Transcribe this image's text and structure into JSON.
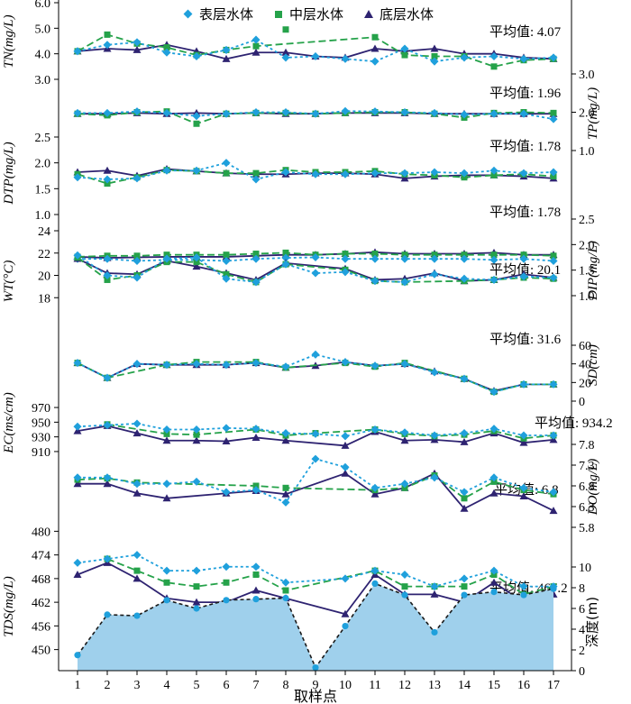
{
  "legend": {
    "surface": "表层水体",
    "middle": "中层水体",
    "bottom": "底层水体"
  },
  "colors": {
    "surface": "#1fa0dc",
    "middle": "#25a24a",
    "bottom": "#2e2371",
    "depth_fill": "#9fd0ec",
    "depth_line": "#1a1a1a"
  },
  "xlabel": "取样点",
  "chart_data": [
    {
      "type": "line",
      "label": "TN",
      "unit": "(mg/L)",
      "side": "left",
      "ylim": [
        3.0,
        6.0
      ],
      "ticks": [
        "3.0",
        "4.0",
        "5.0",
        "6.0"
      ],
      "mean_label": "平均值: 4.07",
      "x": [
        1,
        2,
        3,
        4,
        5,
        6,
        7,
        8,
        9,
        10,
        11,
        12,
        13,
        14,
        15,
        16,
        17
      ],
      "series": [
        {
          "name": "表层水体",
          "values": [
            4.1,
            4.35,
            4.45,
            4.05,
            3.9,
            4.15,
            4.55,
            3.85,
            3.9,
            3.8,
            3.7,
            4.2,
            3.7,
            3.85,
            3.9,
            3.8,
            3.85
          ]
        },
        {
          "name": "中层水体",
          "values": [
            4.1,
            4.75,
            4.4,
            4.25,
            3.95,
            4.15,
            4.3,
            null,
            null,
            null,
            4.65,
            3.95,
            3.9,
            3.9,
            3.5,
            3.75,
            3.8
          ]
        },
        {
          "name": "底层水体",
          "values": [
            4.1,
            4.2,
            4.15,
            4.35,
            4.1,
            3.8,
            4.05,
            4.05,
            3.9,
            3.85,
            4.2,
            4.1,
            4.2,
            4.0,
            4.0,
            3.85,
            3.8
          ]
        }
      ],
      "outliers": [
        {
          "series": "中层水体",
          "x": 8,
          "y": 4.95
        }
      ]
    },
    {
      "type": "line",
      "label": "TP",
      "unit": "(mg/L)",
      "side": "right",
      "ylim": [
        1.0,
        3.0
      ],
      "ticks": [
        "1.0",
        "2.0",
        "3.0"
      ],
      "mean_label": "平均值: 1.96",
      "x": [
        1,
        2,
        3,
        4,
        5,
        6,
        7,
        8,
        9,
        10,
        11,
        12,
        13,
        14,
        15,
        16,
        17
      ],
      "series": [
        {
          "name": "表层水体",
          "values": [
            1.98,
            1.98,
            2.02,
            1.98,
            1.9,
            1.96,
            2.0,
            2.0,
            1.96,
            2.03,
            2.02,
            2.0,
            1.98,
            1.94,
            1.96,
            1.96,
            1.82
          ]
        },
        {
          "name": "中层水体",
          "values": [
            1.96,
            1.92,
            2.0,
            2.02,
            1.7,
            1.96,
            1.98,
            1.98,
            1.96,
            1.98,
            2.0,
            2.0,
            1.96,
            1.86,
            1.98,
            2.0,
            1.98
          ]
        },
        {
          "name": "底层水体",
          "values": [
            1.96,
            1.96,
            1.98,
            1.96,
            1.98,
            1.96,
            1.98,
            1.96,
            1.96,
            1.98,
            1.98,
            1.98,
            1.96,
            1.96,
            1.96,
            1.96,
            1.96
          ]
        }
      ]
    },
    {
      "type": "line",
      "label": "DTP",
      "unit": "(mg/L)",
      "side": "left",
      "ylim": [
        1.0,
        2.5
      ],
      "ticks": [
        "1.0",
        "1.5",
        "2.0",
        "2.5"
      ],
      "mean_label": "平均值: 1.78",
      "x": [
        1,
        2,
        3,
        4,
        5,
        6,
        7,
        8,
        9,
        10,
        11,
        12,
        13,
        14,
        15,
        16,
        17
      ],
      "series": [
        {
          "name": "表层水体",
          "values": [
            1.72,
            1.68,
            1.7,
            1.85,
            1.85,
            2.0,
            1.68,
            1.82,
            1.78,
            1.78,
            1.8,
            1.8,
            1.82,
            1.8,
            1.85,
            1.8,
            1.82
          ]
        },
        {
          "name": "中层水体",
          "values": [
            1.78,
            1.6,
            1.72,
            1.86,
            1.84,
            1.8,
            1.8,
            1.86,
            1.82,
            1.82,
            1.84,
            1.78,
            1.76,
            1.72,
            1.76,
            1.78,
            1.74
          ]
        },
        {
          "name": "底层水体",
          "values": [
            1.82,
            1.85,
            1.75,
            1.88,
            1.84,
            1.8,
            1.78,
            1.78,
            1.8,
            1.8,
            1.78,
            1.7,
            1.74,
            1.76,
            1.76,
            1.74,
            1.7
          ]
        }
      ]
    },
    {
      "type": "line",
      "label": "DIP",
      "unit": "(mg/L)",
      "side": "right",
      "ylim": [
        1.0,
        2.5
      ],
      "ticks": [
        "1.0",
        "1.5",
        "2.0",
        "2.5"
      ],
      "mean_label": "平均值: 1.78",
      "x": [
        1,
        2,
        3,
        4,
        5,
        6,
        7,
        8,
        9,
        10,
        11,
        12,
        13,
        14,
        15,
        16,
        17
      ],
      "series": [
        {
          "name": "表层水体",
          "values": [
            1.72,
            1.72,
            1.68,
            1.7,
            1.7,
            1.68,
            1.72,
            1.74,
            1.75,
            1.72,
            1.72,
            1.72,
            1.72,
            1.72,
            1.7,
            1.72,
            1.68
          ]
        },
        {
          "name": "中层水体",
          "values": [
            1.76,
            1.78,
            1.78,
            1.8,
            1.8,
            1.8,
            1.82,
            1.84,
            1.8,
            1.82,
            1.82,
            1.8,
            1.8,
            1.8,
            1.8,
            1.8,
            1.78
          ]
        },
        {
          "name": "底层水体",
          "values": [
            1.76,
            1.74,
            1.75,
            1.76,
            1.76,
            1.76,
            1.78,
            1.8,
            1.8,
            1.82,
            1.85,
            1.82,
            1.82,
            1.82,
            1.84,
            1.8,
            1.8
          ]
        }
      ]
    },
    {
      "type": "line",
      "label": "WT",
      "unit": "(°C)",
      "side": "left",
      "ylim": [
        16,
        24
      ],
      "ticks": [
        "18",
        "20",
        "22",
        "24"
      ],
      "mean_label": "平均值: 20.1",
      "x": [
        1,
        2,
        3,
        4,
        5,
        6,
        7,
        8,
        9,
        10,
        11,
        12,
        13,
        14,
        15,
        16,
        17
      ],
      "series": [
        {
          "name": "表层水体",
          "values": [
            21.8,
            20.0,
            19.8,
            21.5,
            21.6,
            19.7,
            19.4,
            21.0,
            20.2,
            20.3,
            19.5,
            19.4,
            20.1,
            19.7,
            19.6,
            19.9,
            19.8
          ]
        },
        {
          "name": "中层水体",
          "values": [
            21.6,
            19.6,
            20.0,
            21.2,
            21.2,
            20.1,
            19.4,
            21.0,
            null,
            20.5,
            19.5,
            19.4,
            null,
            19.5,
            19.6,
            19.8,
            19.7
          ]
        },
        {
          "name": "底层水体",
          "values": [
            21.5,
            20.2,
            20.1,
            21.3,
            20.8,
            20.2,
            19.6,
            21.1,
            null,
            20.6,
            19.6,
            19.7,
            20.2,
            19.5,
            19.6,
            20.1,
            19.8
          ]
        }
      ]
    },
    {
      "type": "line",
      "label": "SD",
      "unit": "(cm)",
      "side": "right",
      "ylim": [
        0,
        60
      ],
      "ticks": [
        "0",
        "20",
        "40",
        "60"
      ],
      "mean_label": "平均值: 31.6",
      "x": [
        1,
        2,
        3,
        4,
        5,
        6,
        7,
        8,
        9,
        10,
        11,
        12,
        13,
        14,
        15,
        16,
        17
      ],
      "series": [
        {
          "name": "表层水体",
          "values": [
            41,
            25,
            40,
            39,
            40,
            39,
            41,
            37,
            50,
            42,
            38,
            40,
            31,
            24,
            10,
            18,
            18
          ]
        },
        {
          "name": "中层水体",
          "values": [
            41,
            25,
            null,
            39,
            42,
            null,
            42,
            36,
            null,
            41,
            37,
            41,
            null,
            24,
            10,
            18,
            18
          ]
        },
        {
          "name": "底层水体",
          "values": [
            41,
            25,
            40,
            39,
            39,
            39,
            41,
            36,
            38,
            42,
            38,
            40,
            32,
            24,
            11,
            18,
            18
          ]
        }
      ]
    },
    {
      "type": "line",
      "label": "EC",
      "unit": "(ms/cm)",
      "side": "left",
      "ylim": [
        905,
        975
      ],
      "ticks": [
        "910",
        "930",
        "950",
        "970"
      ],
      "mean_label": "平均值: 934.2",
      "x": [
        1,
        2,
        3,
        4,
        5,
        6,
        7,
        8,
        9,
        10,
        11,
        12,
        13,
        14,
        15,
        16,
        17
      ],
      "series": [
        {
          "name": "表层水体",
          "values": [
            944,
            946,
            948,
            940,
            940,
            942,
            941,
            935,
            934,
            931,
            940,
            936,
            932,
            935,
            941,
            932,
            932
          ]
        },
        {
          "name": "中层水体",
          "values": [
            null,
            947,
            null,
            934,
            933,
            null,
            940,
            932,
            935,
            null,
            940,
            934,
            931,
            933,
            938,
            928,
            932
          ]
        },
        {
          "name": "底层水体",
          "values": [
            938,
            945,
            935,
            925,
            925,
            924,
            929,
            925,
            null,
            918,
            937,
            925,
            926,
            923,
            935,
            922,
            926
          ]
        }
      ]
    },
    {
      "type": "line",
      "label": "DO",
      "unit": "(mg/L)",
      "side": "right",
      "ylim": [
        5.8,
        7.8
      ],
      "ticks": [
        "5.8",
        "6.3",
        "6.8",
        "7.3",
        "7.8"
      ],
      "mean_label": "平均值: 6.8",
      "x": [
        1,
        2,
        3,
        4,
        5,
        6,
        7,
        8,
        9,
        10,
        11,
        12,
        13,
        14,
        15,
        16,
        17
      ],
      "series": [
        {
          "name": "表层水体",
          "values": [
            7.0,
            7.0,
            6.85,
            6.85,
            6.9,
            6.65,
            6.7,
            6.4,
            7.45,
            7.25,
            6.75,
            6.85,
            7.0,
            6.65,
            7.0,
            6.75,
            6.65
          ]
        },
        {
          "name": "中层水体",
          "values": [
            6.95,
            6.98,
            6.88,
            null,
            null,
            null,
            6.8,
            6.75,
            null,
            null,
            6.7,
            6.75,
            7.05,
            6.5,
            6.9,
            6.7,
            6.6
          ]
        },
        {
          "name": "底层水体",
          "values": [
            6.85,
            6.85,
            6.62,
            6.5,
            null,
            6.62,
            6.68,
            6.6,
            null,
            7.1,
            6.6,
            6.75,
            7.1,
            6.25,
            6.62,
            6.55,
            6.2
          ]
        }
      ]
    },
    {
      "type": "line",
      "label": "TDS",
      "unit": "(mg/L)",
      "side": "left",
      "ylim": [
        449,
        481
      ],
      "ticks": [
        "450",
        "456",
        "462",
        "468",
        "474",
        "480"
      ],
      "mean_label": "平均值: 467.2",
      "x": [
        1,
        2,
        3,
        4,
        5,
        6,
        7,
        8,
        9,
        10,
        11,
        12,
        13,
        14,
        15,
        16,
        17
      ],
      "series": [
        {
          "name": "表层水体",
          "values": [
            472,
            473,
            474,
            470,
            470,
            471,
            471,
            467,
            null,
            468,
            470,
            469,
            466,
            468,
            470,
            466,
            466
          ]
        },
        {
          "name": "中层水体",
          "values": [
            null,
            473,
            470,
            467,
            466,
            467,
            469,
            465,
            null,
            null,
            470,
            466,
            466,
            466,
            469,
            464,
            466
          ]
        },
        {
          "name": "底层水体",
          "values": [
            469,
            472,
            468,
            463,
            462,
            462,
            465,
            463,
            null,
            459,
            469,
            464,
            464,
            462,
            467,
            462,
            464
          ]
        }
      ]
    },
    {
      "type": "area",
      "label": "深度",
      "unit": "(m)",
      "side": "right",
      "ylim": [
        0,
        10
      ],
      "ticks": [
        "0",
        "2",
        "4",
        "6",
        "8",
        "10"
      ],
      "x": [
        1,
        2,
        3,
        4,
        5,
        6,
        7,
        8,
        9,
        10,
        11,
        12,
        13,
        14,
        15,
        16,
        17
      ],
      "values": [
        1.5,
        5.4,
        5.3,
        6.8,
        6.0,
        6.8,
        6.9,
        7.0,
        0.3,
        4.3,
        8.4,
        7.3,
        3.7,
        7.3,
        7.6,
        7.3,
        7.9
      ]
    }
  ],
  "x_ticks": [
    "1",
    "2",
    "3",
    "4",
    "5",
    "6",
    "7",
    "8",
    "9",
    "10",
    "11",
    "12",
    "13",
    "14",
    "15",
    "16",
    "17"
  ]
}
